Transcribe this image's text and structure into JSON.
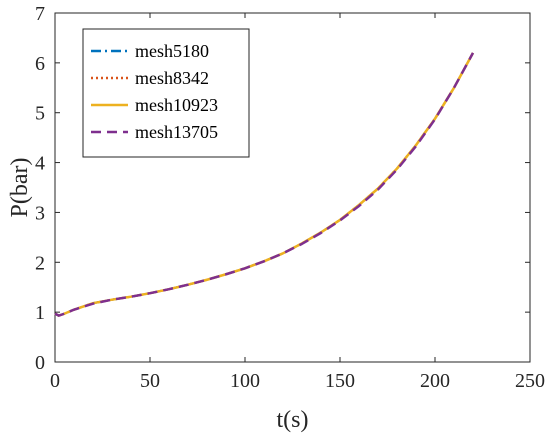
{
  "chart_data": {
    "type": "line",
    "title": "",
    "xlabel": "t(s)",
    "ylabel": "P(bar)",
    "xlim": [
      0,
      250
    ],
    "ylim": [
      0,
      7
    ],
    "xticks": [
      "0",
      "50",
      "100",
      "150",
      "200",
      "250"
    ],
    "yticks": [
      "0",
      "1",
      "2",
      "3",
      "4",
      "5",
      "6",
      "7"
    ],
    "grid": false,
    "legend_position": "top-left",
    "x": [
      0,
      2,
      5,
      10,
      20,
      30,
      40,
      50,
      60,
      70,
      80,
      90,
      100,
      110,
      120,
      130,
      140,
      150,
      160,
      170,
      180,
      190,
      200,
      210,
      220
    ],
    "series": [
      {
        "name": "mesh5180",
        "color": "#0072BD",
        "dash": "dashdot",
        "values": [
          0.97,
          0.93,
          0.97,
          1.05,
          1.18,
          1.25,
          1.31,
          1.38,
          1.46,
          1.55,
          1.65,
          1.76,
          1.88,
          2.02,
          2.18,
          2.38,
          2.6,
          2.85,
          3.15,
          3.48,
          3.88,
          4.35,
          4.88,
          5.5,
          6.2
        ]
      },
      {
        "name": "mesh8342",
        "color": "#D95319",
        "dash": "dotted",
        "values": [
          0.97,
          0.93,
          0.97,
          1.05,
          1.18,
          1.25,
          1.31,
          1.38,
          1.46,
          1.55,
          1.65,
          1.76,
          1.88,
          2.02,
          2.18,
          2.38,
          2.6,
          2.85,
          3.15,
          3.48,
          3.88,
          4.35,
          4.88,
          5.5,
          6.2
        ]
      },
      {
        "name": "mesh10923",
        "color": "#EDB120",
        "dash": "solid",
        "values": [
          0.97,
          0.93,
          0.97,
          1.05,
          1.18,
          1.25,
          1.31,
          1.38,
          1.46,
          1.55,
          1.65,
          1.76,
          1.88,
          2.02,
          2.18,
          2.38,
          2.6,
          2.85,
          3.15,
          3.48,
          3.88,
          4.35,
          4.88,
          5.5,
          6.2
        ]
      },
      {
        "name": "mesh13705",
        "color": "#7E2F8E",
        "dash": "dashed",
        "values": [
          0.97,
          0.93,
          0.97,
          1.05,
          1.17,
          1.25,
          1.31,
          1.38,
          1.46,
          1.55,
          1.65,
          1.76,
          1.88,
          2.02,
          2.18,
          2.37,
          2.59,
          2.84,
          3.13,
          3.46,
          3.86,
          4.33,
          4.87,
          5.5,
          6.2
        ]
      }
    ]
  }
}
